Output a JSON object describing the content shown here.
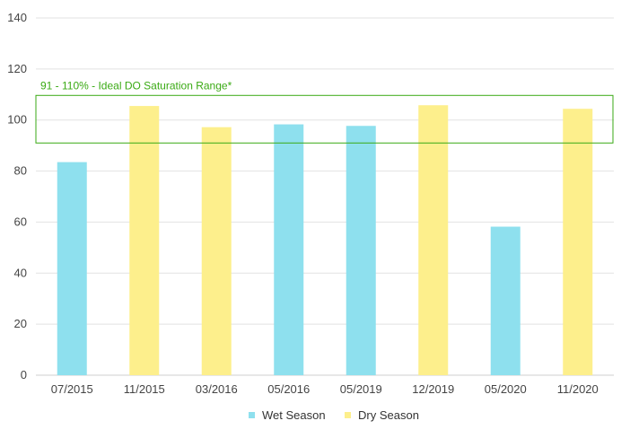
{
  "chart_data": {
    "type": "bar",
    "categories": [
      "07/2015",
      "11/2015",
      "03/2016",
      "05/2016",
      "05/2019",
      "12/2019",
      "05/2020",
      "11/2020"
    ],
    "values": [
      83.5,
      105.5,
      97.2,
      98.3,
      97.7,
      105.8,
      58.2,
      104.4
    ],
    "series_of_bar": [
      "Wet Season",
      "Dry Season",
      "Dry Season",
      "Wet Season",
      "Wet Season",
      "Dry Season",
      "Wet Season",
      "Dry Season"
    ],
    "legend": [
      {
        "name": "Wet Season",
        "color": "#8ee0ee"
      },
      {
        "name": "Dry Season",
        "color": "#fdef8c"
      }
    ],
    "legend_position": "bottom",
    "ylim": [
      0,
      140
    ],
    "yticks": [
      0,
      20,
      40,
      60,
      80,
      100,
      120,
      140
    ],
    "grid": true,
    "band": {
      "low": 91,
      "high": 110,
      "label": "91 - 110% - Ideal DO Saturation Range*",
      "color": "#3aaa14"
    },
    "title": "",
    "xlabel": "",
    "ylabel": ""
  }
}
